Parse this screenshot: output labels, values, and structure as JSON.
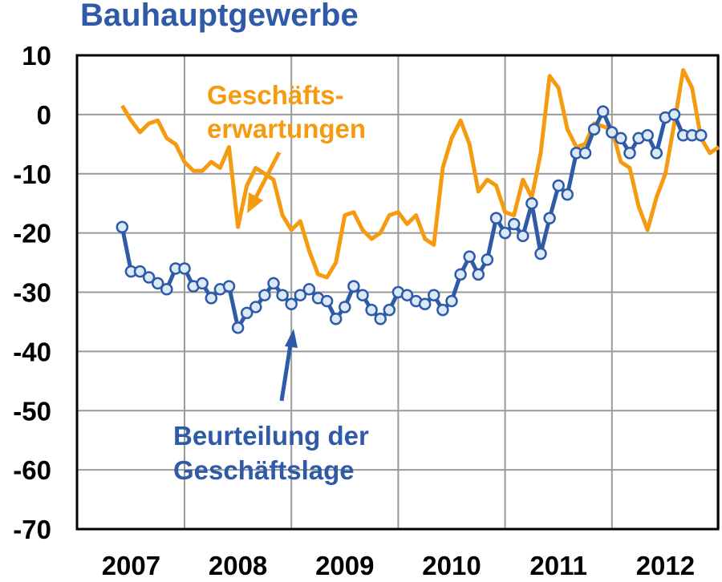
{
  "chart_data": {
    "type": "line",
    "title": "Bauhauptgewerbe",
    "xlabel": "",
    "ylabel": "",
    "ylim": [
      -70,
      10
    ],
    "yticks": [
      "10",
      "0",
      "-10",
      "-20",
      "-30",
      "-40",
      "-50",
      "-60",
      "-70"
    ],
    "xticks": [
      "2007",
      "2008",
      "2009",
      "2010",
      "2011",
      "2012"
    ],
    "grid": true,
    "x_start": "2006-06",
    "series": [
      {
        "name": "Geschäfts- erwartungen",
        "color": "#f59b11",
        "marker": "none",
        "values": [
          1.5,
          -1,
          -3,
          -1.5,
          -1,
          -4,
          -5,
          -8,
          -9.5,
          -9.5,
          -8,
          -9,
          -5.5,
          -19,
          -12,
          -9,
          -10,
          -11,
          -17,
          -19.5,
          -18,
          -23,
          -27,
          -27.5,
          -25,
          -17,
          -16.5,
          -19.5,
          -21,
          -20,
          -17,
          -16.5,
          -18.5,
          -17,
          -21,
          -22,
          -9,
          -4,
          -1,
          -5,
          -13,
          -11,
          -12,
          -16.5,
          -17,
          -11,
          -14,
          -6.5,
          6.5,
          4.5,
          -2.5,
          -5.5,
          -5,
          -1.5,
          -2,
          -2.5,
          -8,
          -9,
          -15.5,
          -19.5,
          -14,
          -10,
          -1.5,
          7.5,
          4.5,
          -4,
          -6.5,
          -5.5
        ]
      },
      {
        "name": "Beurteilung der Geschäftslage",
        "color": "#2e5aa7",
        "marker": "circle",
        "values": [
          -19,
          -26.5,
          -26.5,
          -27.5,
          -28.5,
          -29.5,
          -26,
          -26,
          -29,
          -28.5,
          -31,
          -29.5,
          -29,
          -36,
          -33.5,
          -32.5,
          -30.5,
          -28.5,
          -30.5,
          -32,
          -30.5,
          -29.5,
          -31,
          -31.5,
          -34.5,
          -32.5,
          -29,
          -30.5,
          -33,
          -34.5,
          -33,
          -30,
          -30.5,
          -31.5,
          -32,
          -30.5,
          -33,
          -31.5,
          -27,
          -24,
          -27,
          -24.5,
          -17.5,
          -20,
          -18.5,
          -20.5,
          -15,
          -23.5,
          -17.5,
          -12,
          -13.5,
          -6.5,
          -6.5,
          -2.5,
          0.5,
          -3,
          -4,
          -6.5,
          -4,
          -3.5,
          -6.5,
          -0.5,
          0,
          -3.5,
          -3.5,
          -3.5
        ]
      }
    ],
    "annotations": [
      {
        "lines": [
          "Geschäfts-",
          "erwartungen"
        ],
        "series": "Geschäfts- erwartungen"
      },
      {
        "lines": [
          "Beurteilung der",
          "Geschäftslage"
        ],
        "series": "Beurteilung der Geschäftslage"
      }
    ]
  }
}
